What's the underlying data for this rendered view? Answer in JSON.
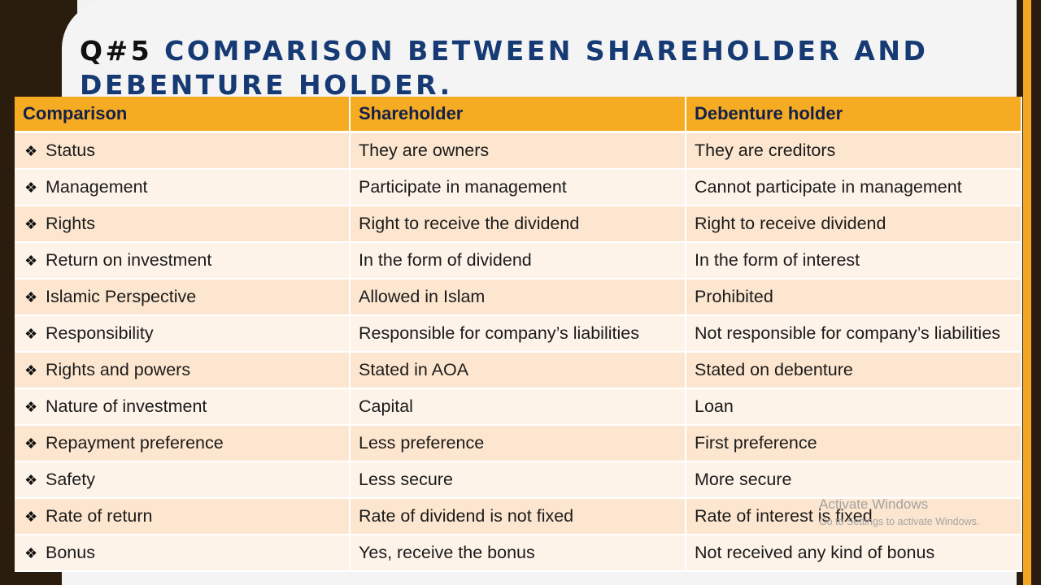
{
  "slide": {
    "title_prefix": "Q#5",
    "title_main": "COMPARISON BETWEEN SHAREHOLDER AND DEBENTURE HOLDER."
  },
  "table": {
    "headers": [
      "Comparison",
      "Shareholder",
      "Debenture holder"
    ],
    "bullet": "❖",
    "rows": [
      [
        "Status",
        "They are owners",
        "They are creditors"
      ],
      [
        "Management",
        "Participate in management",
        "Cannot participate in management"
      ],
      [
        "Rights",
        "Right to receive the dividend",
        "Right to receive dividend"
      ],
      [
        "Return on investment",
        "In the form of dividend",
        "In the form of interest"
      ],
      [
        "Islamic Perspective",
        "Allowed in Islam",
        "Prohibited"
      ],
      [
        "Responsibility",
        "Responsible for company’s liabilities",
        "Not responsible for company’s liabilities"
      ],
      [
        "Rights and powers",
        "Stated in AOA",
        "Stated on debenture"
      ],
      [
        "Nature of investment",
        "Capital",
        "Loan"
      ],
      [
        "Repayment preference",
        "Less preference",
        "First preference"
      ],
      [
        "Safety",
        "Less secure",
        "More secure"
      ],
      [
        "Rate of return",
        "Rate of dividend is not fixed",
        "Rate of interest is fixed"
      ],
      [
        "Bonus",
        "Yes, receive the bonus",
        "Not received any kind of bonus"
      ]
    ]
  },
  "watermark": {
    "title": "Activate Windows",
    "subtitle": "Go to Settings to activate Windows."
  },
  "colors": {
    "title": "#163a73",
    "header_bg": "#f5ab22",
    "row_odd": "#fde6cf",
    "row_even": "#fef3e9",
    "frame_dark": "#2a1d0e"
  }
}
